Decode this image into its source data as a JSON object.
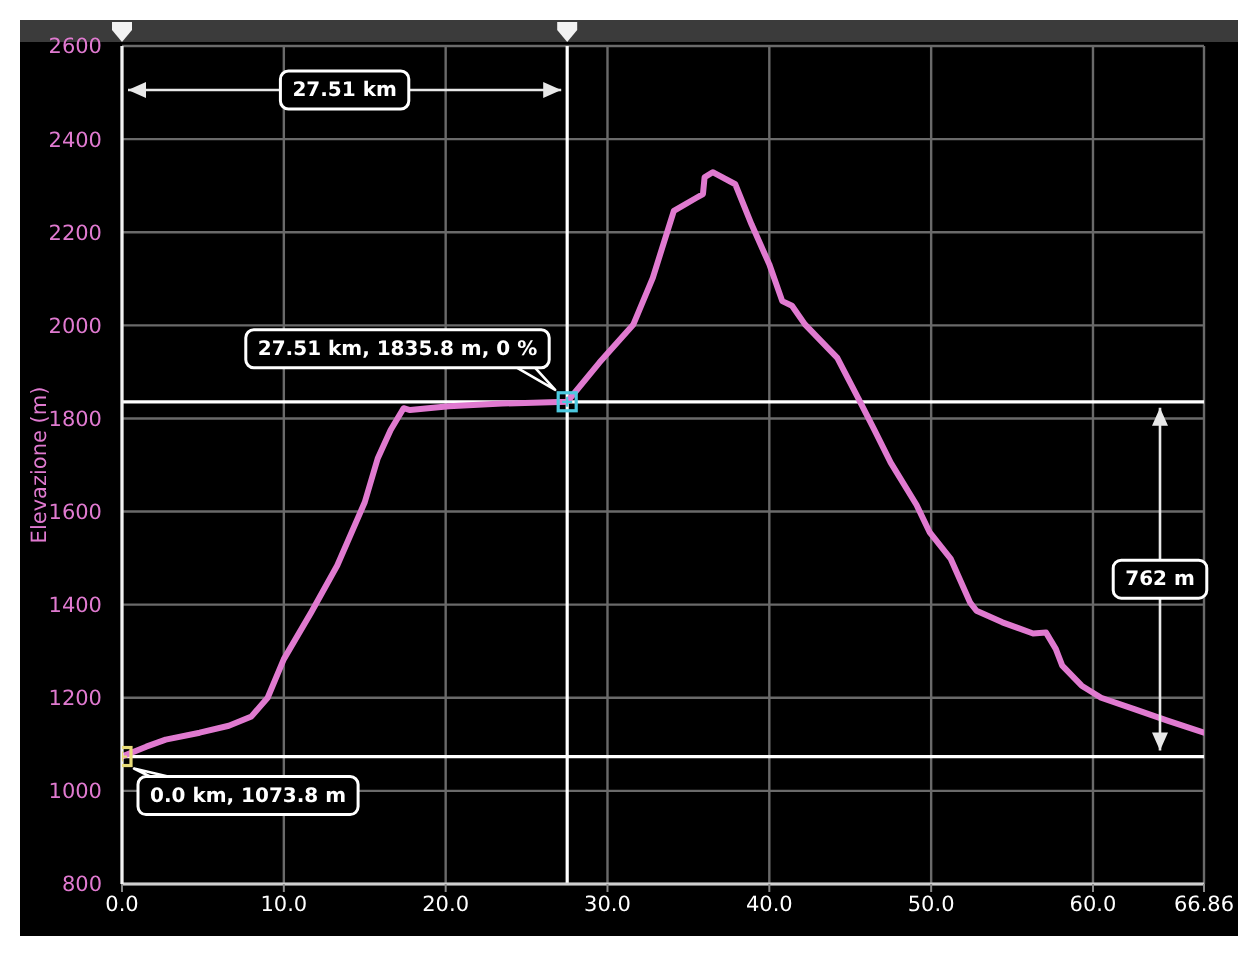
{
  "chart_data": {
    "type": "line",
    "ylabel": "Elevazione (m)",
    "xlim": [
      0,
      66.86
    ],
    "xticks": [
      {
        "value": 0,
        "label": "0.0"
      },
      {
        "value": 10,
        "label": "10.0"
      },
      {
        "value": 20,
        "label": "20.0"
      },
      {
        "value": 30,
        "label": "30.0"
      },
      {
        "value": 40,
        "label": "40.0"
      },
      {
        "value": 50,
        "label": "50.0"
      },
      {
        "value": 60,
        "label": "60.0"
      },
      66.86
    ],
    "ylim": [
      800,
      2600
    ],
    "yticks": [
      800,
      1000,
      1200,
      1400,
      1600,
      1800,
      2000,
      2200,
      2400,
      2600
    ],
    "grid": true,
    "series": [
      {
        "color": "#e07ad0",
        "x": [
          0,
          1.5,
          2.7,
          4.8,
          6.6,
          8.0,
          9.0,
          10.0,
          11.7,
          13.3,
          15.0,
          15.8,
          16.6,
          17.4,
          17.8,
          20.2,
          23.5,
          27.51,
          29.5,
          31.6,
          32.8,
          34.1,
          35.5,
          35.9,
          36.0,
          36.5,
          37.9,
          38.9,
          40.0,
          40.8,
          41.4,
          42.2,
          44.2,
          45.5,
          46.5,
          47.5,
          49.1,
          49.9,
          51.2,
          52.4,
          52.8,
          54.4,
          56.3,
          57.1,
          57.7,
          58.1,
          59.3,
          60.5,
          62.6,
          64.6,
          66.86
        ],
        "values": [
          1073.8,
          1095,
          1110,
          1125,
          1140,
          1160,
          1200,
          1283,
          1384,
          1484,
          1620,
          1714,
          1775,
          1822,
          1818,
          1826,
          1832,
          1835.8,
          1920,
          2002,
          2102,
          2246,
          2274,
          2282,
          2318,
          2329,
          2303,
          2217,
          2131,
          2052,
          2042,
          2002,
          1930,
          1843,
          1775,
          1705,
          1614,
          1556,
          1499,
          1405,
          1387,
          1362,
          1338,
          1340,
          1305,
          1269,
          1226,
          1200,
          1175,
          1151,
          1125
        ]
      },
      {
        "type": "scatter",
        "marker": "square",
        "x": [
          0,
          27.51
        ],
        "values": [
          1073.8,
          1835.8
        ],
        "colors": [
          "#e8dc78",
          "#4cc9e0"
        ]
      }
    ],
    "ref_lines": [
      {
        "axis": "x",
        "value": 27.51,
        "color": "#ffffff"
      },
      {
        "axis": "y",
        "value": 1835.8,
        "color": "#ffffff"
      },
      {
        "axis": "y",
        "value": 1073.8,
        "color": "#ffffff"
      }
    ],
    "annotations": [
      "27.51 km",
      {
        "text": "27.51 km, 1835.8 m, 0 %",
        "x": 27.51,
        "y": 1835.8
      },
      {
        "text": "0.0 km, 1073.8 m",
        "x": 0,
        "y": 1073.8
      },
      "762 m"
    ]
  }
}
